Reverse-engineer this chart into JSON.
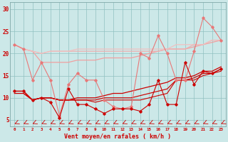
{
  "x": [
    0,
    1,
    2,
    3,
    4,
    5,
    6,
    7,
    8,
    9,
    10,
    11,
    12,
    13,
    14,
    15,
    16,
    17,
    18,
    19,
    20,
    21,
    22,
    23
  ],
  "pink_upper1": [
    22,
    21,
    20.5,
    18,
    18,
    18,
    18,
    18.5,
    18.5,
    18.5,
    19,
    19,
    19,
    19,
    19.5,
    20,
    20.5,
    21,
    21,
    21,
    21.5,
    22,
    22.5,
    23
  ],
  "pink_upper2": [
    22,
    21,
    20.5,
    20,
    20.5,
    20.5,
    20.5,
    20.5,
    20.5,
    20.5,
    20.5,
    20.5,
    20.5,
    20.5,
    20.5,
    20.5,
    20.5,
    21,
    21,
    21,
    22,
    22,
    23,
    23
  ],
  "pink_upper3": [
    22,
    21,
    20.5,
    20,
    20.5,
    20.5,
    20.5,
    21,
    21,
    21,
    21,
    21,
    21,
    21,
    21,
    21,
    21,
    21,
    22,
    22,
    22,
    22,
    23,
    23
  ],
  "pink_spiky": [
    22,
    21,
    14,
    18,
    14,
    6,
    13,
    15.5,
    14,
    14,
    9.5,
    8,
    7.5,
    8,
    20,
    19,
    24,
    20,
    14,
    14,
    20.5,
    28,
    26,
    23
  ],
  "red_upper1": [
    11.5,
    11.5,
    9.5,
    10,
    10,
    9.5,
    9.5,
    10,
    10,
    10,
    10.5,
    11,
    11,
    11.5,
    12,
    12.5,
    13,
    13.5,
    14.5,
    14.5,
    15,
    16,
    16,
    17
  ],
  "red_upper2": [
    11,
    11,
    9.5,
    10,
    10,
    9.5,
    9.5,
    9.5,
    9.5,
    9.5,
    10,
    10,
    10,
    10,
    10.5,
    11,
    11.5,
    12,
    14,
    14,
    14.5,
    15.5,
    15.5,
    16.5
  ],
  "red_upper3": [
    11,
    11,
    9.5,
    10,
    10,
    9.5,
    9.5,
    9.5,
    9.5,
    9,
    9.5,
    9.5,
    9.5,
    9.5,
    9.5,
    10,
    10.5,
    11,
    14,
    14,
    14,
    15,
    15.5,
    16
  ],
  "red_spiky": [
    11.5,
    11.5,
    9.5,
    10,
    9,
    5.5,
    12,
    8.5,
    8.5,
    7.5,
    6.5,
    7.5,
    7.5,
    7.5,
    7,
    8.5,
    14,
    8.5,
    8.5,
    18,
    13,
    16,
    15.5,
    16.5
  ],
  "bg": "#cce8e8",
  "grid_color": "#a0c8c8",
  "xlabel": "Vent moyen/en rafales ( km/h )",
  "yticks": [
    5,
    10,
    15,
    20,
    25,
    30
  ],
  "xlim": [
    -0.5,
    23.5
  ],
  "ylim": [
    3.5,
    31.5
  ]
}
